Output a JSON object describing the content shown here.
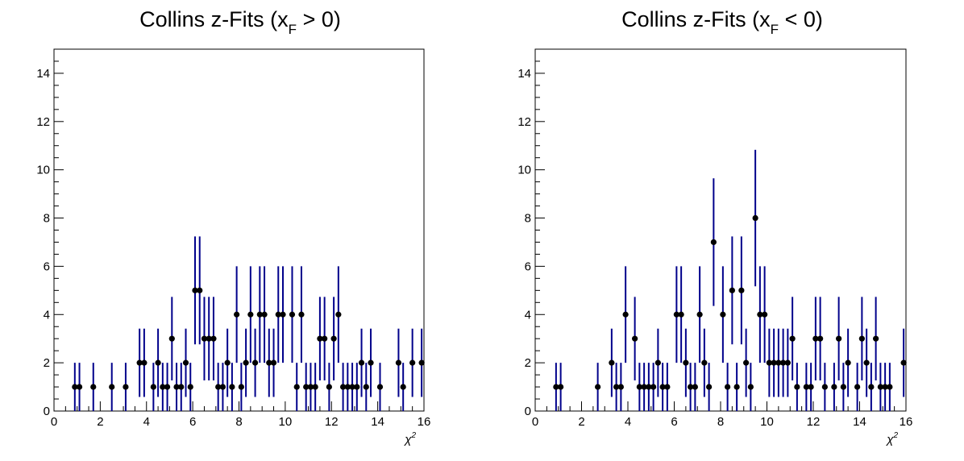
{
  "chart_data": [
    {
      "type": "scatter",
      "title_text": "Collins z-Fits (x",
      "title_subscript": "F",
      "title_suffix": " > 0)",
      "xlabel": "χ",
      "xlabel_sup": "2",
      "ylabel": "",
      "xlim": [
        0,
        16
      ],
      "ylim": [
        0,
        15
      ],
      "x_ticks": [
        "0",
        "2",
        "4",
        "6",
        "8",
        "10",
        "12",
        "14",
        "16"
      ],
      "y_ticks": [
        "0",
        "2",
        "4",
        "6",
        "8",
        "10",
        "12",
        "14"
      ],
      "error_bars": "poisson sqrt(N)",
      "grid": false,
      "marker_color": "#000000",
      "errorbar_color": "#00008b",
      "x": [
        0.9,
        1.1,
        1.7,
        2.5,
        3.1,
        3.7,
        3.9,
        4.3,
        4.5,
        4.7,
        4.9,
        5.1,
        5.3,
        5.5,
        5.7,
        5.9,
        6.1,
        6.3,
        6.5,
        6.7,
        6.9,
        7.1,
        7.3,
        7.5,
        7.7,
        7.9,
        8.1,
        8.3,
        8.5,
        8.7,
        8.9,
        9.1,
        9.3,
        9.5,
        9.7,
        9.9,
        10.3,
        10.5,
        10.7,
        10.9,
        11.1,
        11.3,
        11.5,
        11.7,
        11.9,
        12.1,
        12.3,
        12.5,
        12.7,
        12.9,
        13.1,
        13.3,
        13.5,
        13.7,
        14.1,
        14.9,
        15.1,
        15.5,
        15.9
      ],
      "y": [
        1,
        1,
        1,
        1,
        1,
        2,
        2,
        1,
        2,
        1,
        1,
        3,
        1,
        1,
        2,
        1,
        5,
        5,
        3,
        3,
        3,
        1,
        1,
        2,
        1,
        4,
        1,
        2,
        4,
        2,
        4,
        4,
        2,
        2,
        4,
        4,
        4,
        1,
        4,
        1,
        1,
        1,
        3,
        3,
        1,
        3,
        4,
        1,
        1,
        1,
        1,
        2,
        1,
        2,
        1,
        2,
        1,
        2,
        2
      ]
    },
    {
      "type": "scatter",
      "title_text": "Collins z-Fits (x",
      "title_subscript": "F",
      "title_suffix": " < 0)",
      "xlabel": "χ",
      "xlabel_sup": "2",
      "ylabel": "",
      "xlim": [
        0,
        16
      ],
      "ylim": [
        0,
        15
      ],
      "x_ticks": [
        "0",
        "2",
        "4",
        "6",
        "8",
        "10",
        "12",
        "14",
        "16"
      ],
      "y_ticks": [
        "0",
        "2",
        "4",
        "6",
        "8",
        "10",
        "12",
        "14"
      ],
      "error_bars": "poisson sqrt(N)",
      "grid": false,
      "marker_color": "#000000",
      "errorbar_color": "#00008b",
      "x": [
        0.9,
        1.1,
        2.7,
        3.3,
        3.5,
        3.7,
        3.9,
        4.3,
        4.5,
        4.7,
        4.9,
        5.1,
        5.3,
        5.5,
        5.7,
        6.1,
        6.3,
        6.5,
        6.7,
        6.9,
        7.1,
        7.3,
        7.5,
        7.7,
        8.1,
        8.3,
        8.5,
        8.7,
        8.9,
        9.1,
        9.3,
        9.5,
        9.7,
        9.9,
        10.1,
        10.3,
        10.5,
        10.7,
        10.9,
        11.1,
        11.3,
        11.7,
        11.9,
        12.1,
        12.3,
        12.5,
        12.9,
        13.1,
        13.3,
        13.5,
        13.9,
        14.1,
        14.3,
        14.5,
        14.7,
        14.9,
        15.1,
        15.3,
        15.9
      ],
      "y": [
        1,
        1,
        1,
        2,
        1,
        1,
        4,
        3,
        1,
        1,
        1,
        1,
        2,
        1,
        1,
        4,
        4,
        2,
        1,
        1,
        4,
        2,
        1,
        7,
        4,
        1,
        5,
        1,
        5,
        2,
        1,
        8,
        4,
        4,
        2,
        2,
        2,
        2,
        2,
        3,
        1,
        1,
        1,
        3,
        3,
        1,
        1,
        3,
        1,
        2,
        1,
        3,
        2,
        1,
        3,
        1,
        1,
        1,
        2
      ]
    }
  ]
}
